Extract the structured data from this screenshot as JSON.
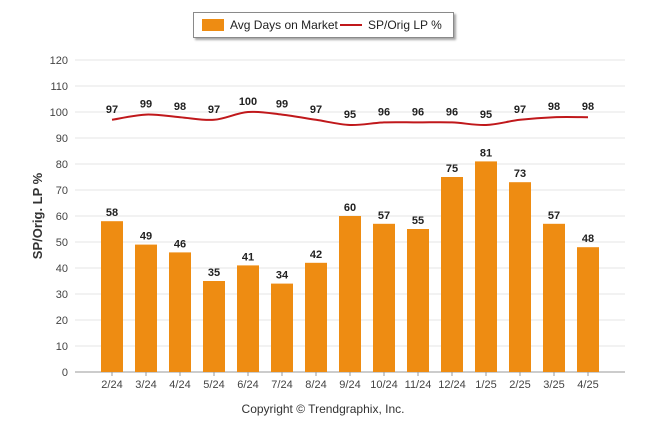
{
  "chart_data": {
    "type": "bar",
    "categories": [
      "2/24",
      "3/24",
      "4/24",
      "5/24",
      "6/24",
      "7/24",
      "8/24",
      "9/24",
      "10/24",
      "11/24",
      "12/24",
      "1/25",
      "2/25",
      "3/25",
      "4/25"
    ],
    "series": [
      {
        "name": "Avg Days on Market",
        "type": "bar",
        "color": "#ee8c12",
        "values": [
          58,
          49,
          46,
          35,
          41,
          34,
          42,
          60,
          57,
          55,
          75,
          81,
          73,
          57,
          48
        ]
      },
      {
        "name": "SP/Orig LP %",
        "type": "line",
        "color": "#c0181b",
        "values": [
          97,
          99,
          98,
          97,
          100,
          99,
          97,
          95,
          96,
          96,
          96,
          95,
          97,
          98,
          98
        ]
      }
    ],
    "ylabel": "SP/Orig. LP %",
    "ylim": [
      0,
      120
    ],
    "yticks": [
      0,
      10,
      20,
      30,
      40,
      50,
      60,
      70,
      80,
      90,
      100,
      110,
      120
    ],
    "grid": true,
    "legend_position": "top-center"
  },
  "footer": {
    "copyright": "Copyright © Trendgraphix, Inc."
  }
}
